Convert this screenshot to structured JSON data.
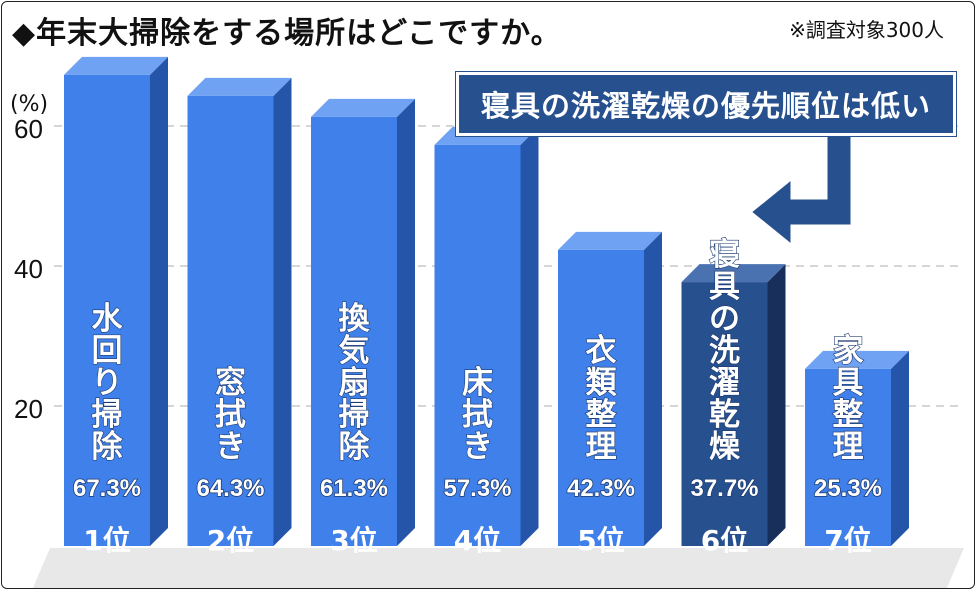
{
  "title": "◆年末大掃除をする場所はどこですか。",
  "note": "※調査対象300人",
  "callout": "寝具の洗濯乾燥の優先順位は低い",
  "colors": {
    "bar_front": "#3f80ea",
    "bar_side": "#2555a8",
    "bar_top": "#6fa2f2",
    "highlight_front": "#27508f",
    "highlight_side": "#172f5a",
    "highlight_top": "#4a72b0",
    "arrow": "#27508f"
  },
  "chart_data": {
    "type": "bar",
    "title": "◆年末大掃除をする場所はどこですか。",
    "ylabel": "(%)",
    "ylim": [
      0,
      70
    ],
    "yticks": [
      20,
      40,
      60
    ],
    "grid": true,
    "highlight_index": 5,
    "categories": [
      "水回り掃除",
      "窓拭き",
      "換気扇掃除",
      "床拭き",
      "衣類整理",
      "寝具の洗濯乾燥",
      "家具整理"
    ],
    "values": [
      67.3,
      64.3,
      61.3,
      57.3,
      42.3,
      37.7,
      25.3
    ],
    "value_labels": [
      "67.3%",
      "64.3%",
      "61.3%",
      "57.3%",
      "42.3%",
      "37.7%",
      "25.3%"
    ],
    "ranks": [
      "1位",
      "2位",
      "3位",
      "4位",
      "5位",
      "6位",
      "7位"
    ]
  }
}
